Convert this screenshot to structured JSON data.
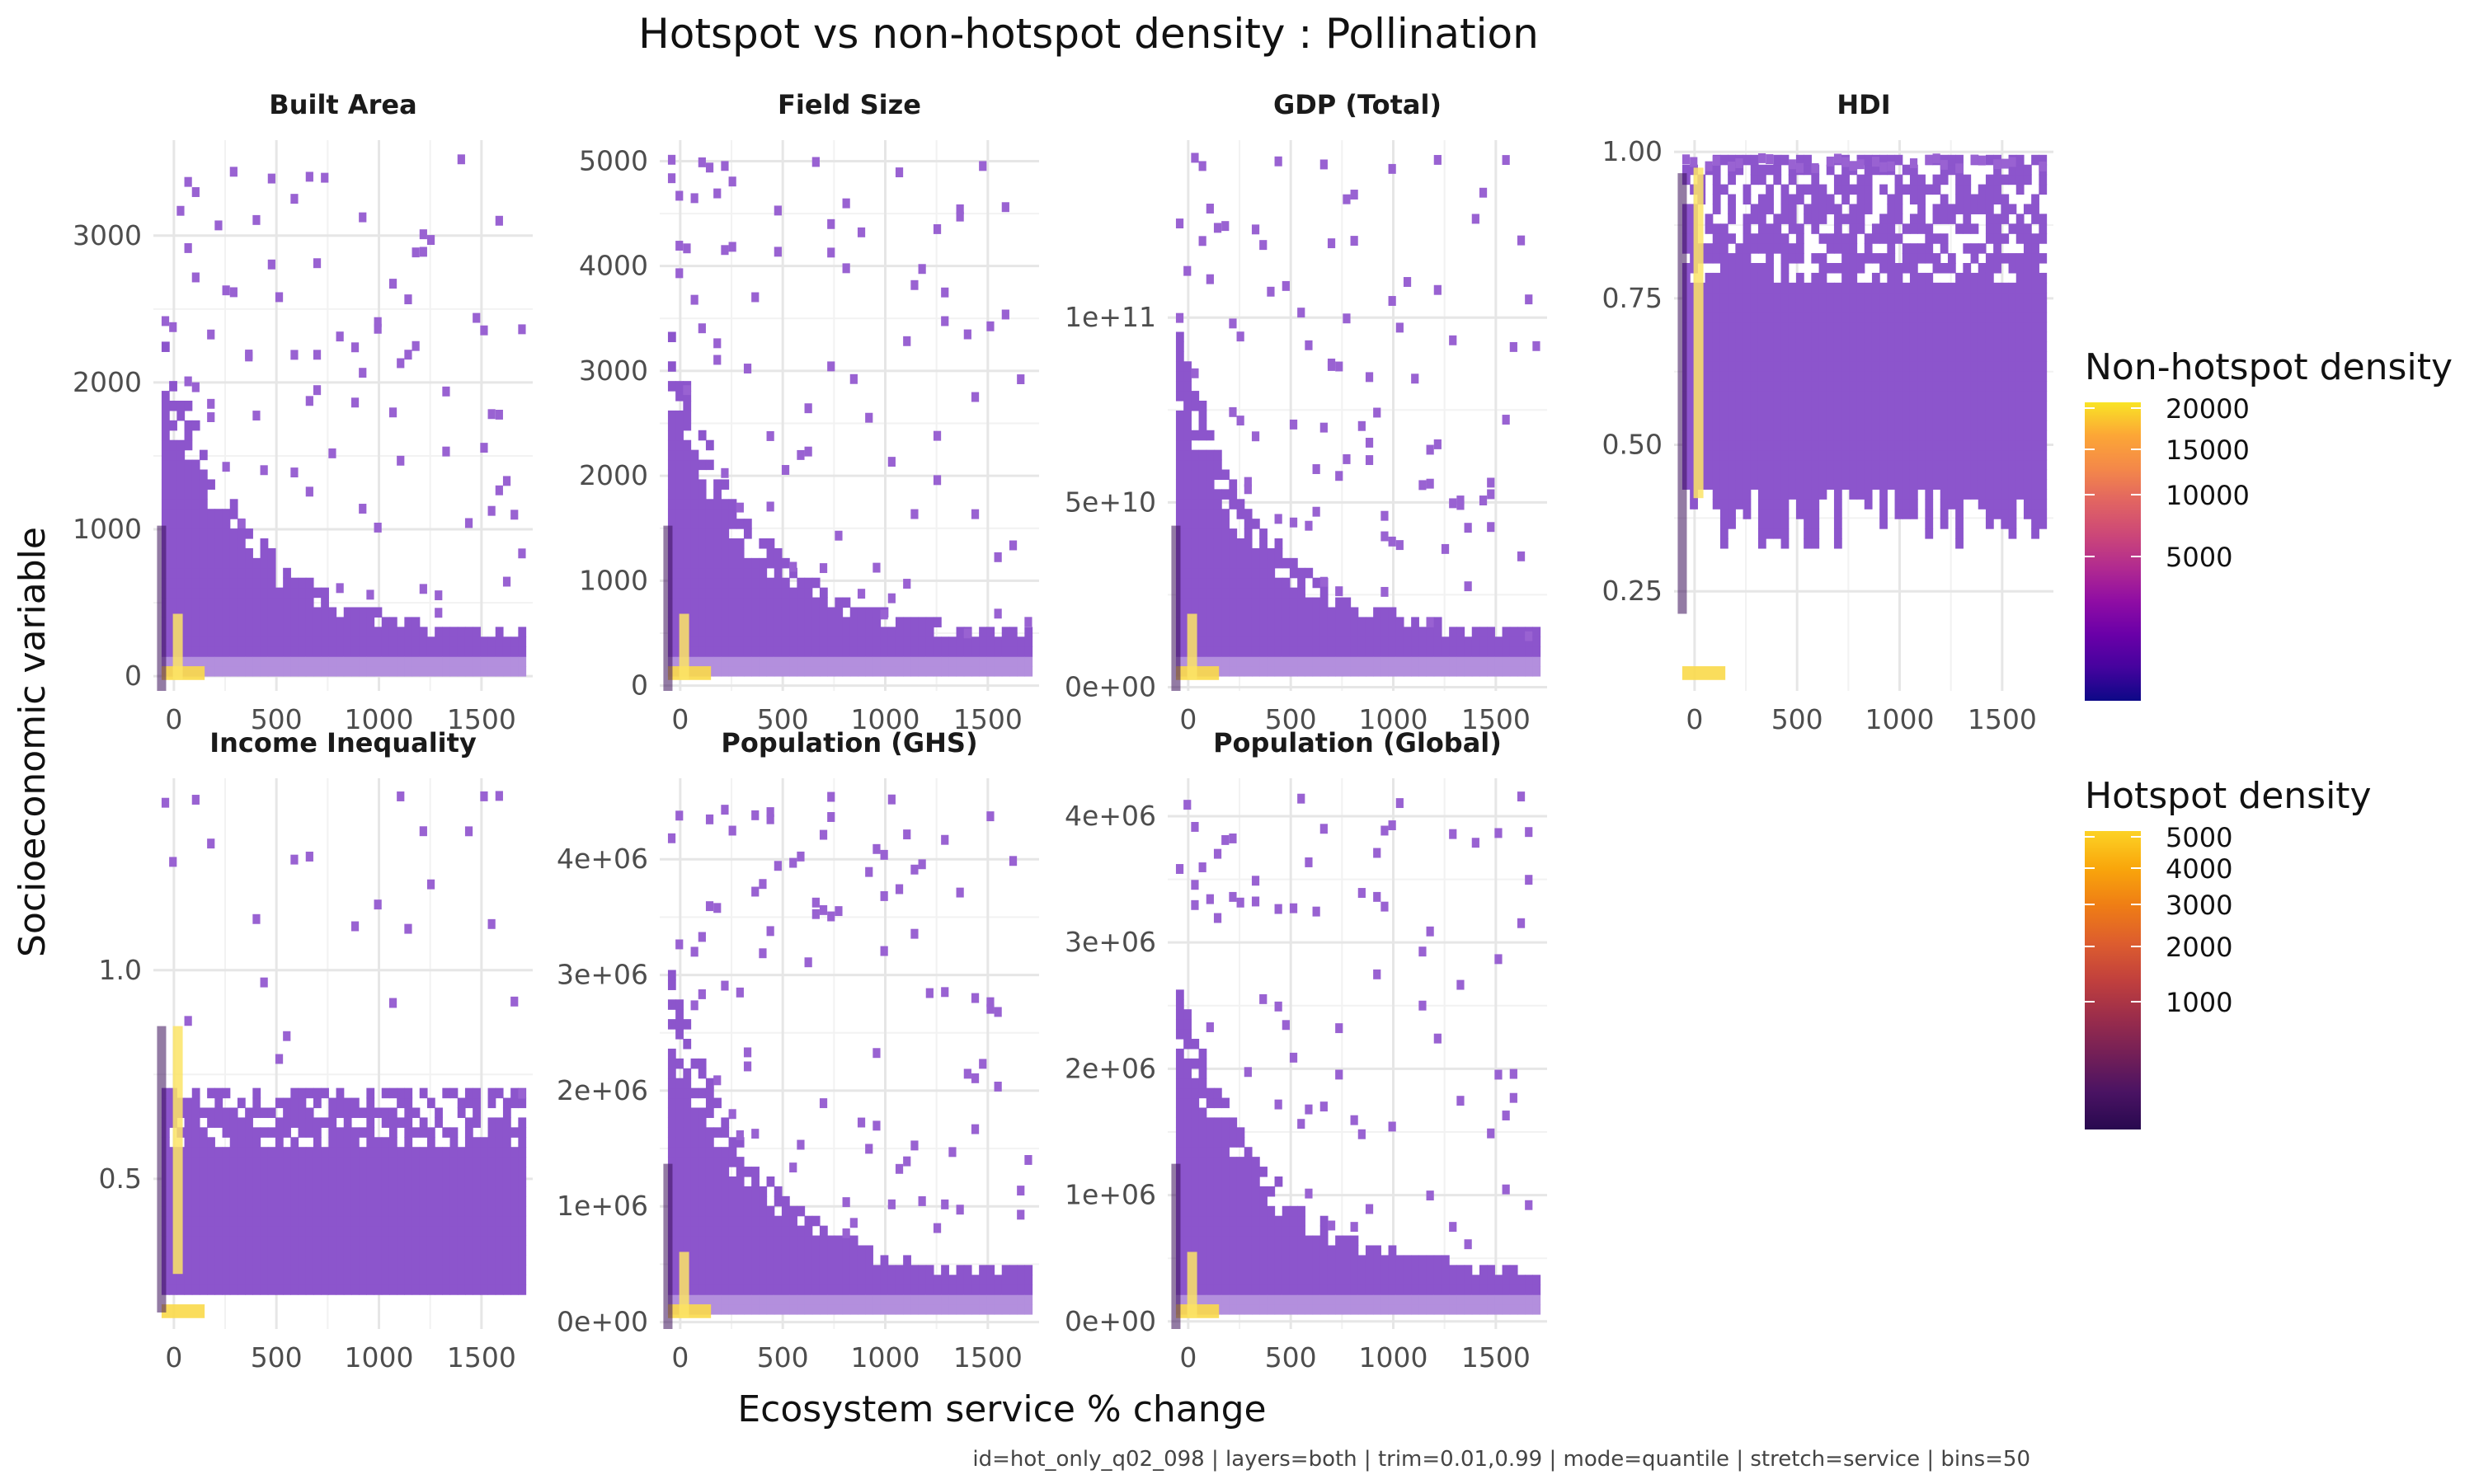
{
  "figure": {
    "title": "Hotspot vs non-hotspot density : Pollination",
    "xlabel": "Ecosystem service % change",
    "ylabel": "Socioeconomic variable",
    "caption": "id=hot_only_q02_098 | layers=both | trim=0.01,0.99 | mode=quantile | stretch=service | bins=50"
  },
  "legends": [
    {
      "title": "Non-hotspot density",
      "ticks": [
        "20000",
        "15000",
        "10000",
        "5000"
      ],
      "colors": [
        "#f9e425",
        "#fca636",
        "#f48849",
        "#e16462",
        "#cc4778",
        "#b12a90",
        "#8f0da4",
        "#6a00a8",
        "#45039e",
        "#0d0887"
      ]
    },
    {
      "title": "Hotspot density",
      "ticks": [
        "5000",
        "4000",
        "3000",
        "2000",
        "1000"
      ],
      "colors": [
        "#fcd225",
        "#f9a60b",
        "#ef7d15",
        "#dd5d2e",
        "#c1403d",
        "#9b2d4b",
        "#731f57",
        "#4a1363",
        "#28094f"
      ]
    }
  ],
  "chart_data": [
    {
      "type": "heatmap",
      "title": "Built Area",
      "xlim": [
        -100,
        1750
      ],
      "xticks": [
        0,
        500,
        1000,
        1500
      ],
      "xtick_labels": [
        "0",
        "500",
        "1000",
        "1500"
      ],
      "ylim": [
        -100,
        3650
      ],
      "yticks": [
        0,
        1000,
        2000,
        3000
      ],
      "ytick_labels": [
        "0",
        "1000",
        "2000",
        "3000"
      ]
    },
    {
      "type": "heatmap",
      "title": "Field Size",
      "xlim": [
        -100,
        1750
      ],
      "xticks": [
        0,
        500,
        1000,
        1500
      ],
      "xtick_labels": [
        "0",
        "500",
        "1000",
        "1500"
      ],
      "ylim": [
        -50,
        5200
      ],
      "yticks": [
        0,
        1000,
        2000,
        3000,
        4000,
        5000
      ],
      "ytick_labels": [
        "0",
        "1000",
        "2000",
        "3000",
        "4000",
        "5000"
      ]
    },
    {
      "type": "heatmap",
      "title": "GDP (Total)",
      "xlim": [
        -100,
        1750
      ],
      "xticks": [
        0,
        500,
        1000,
        1500
      ],
      "xtick_labels": [
        "0",
        "500",
        "1000",
        "1500"
      ],
      "ylim": [
        -1000000000.0,
        148000000000.0
      ],
      "yticks": [
        0,
        50000000000.0,
        100000000000.0
      ],
      "ytick_labels": [
        "0e+00",
        "5e+10",
        "1e+11"
      ]
    },
    {
      "type": "heatmap",
      "title": "HDI",
      "xlim": [
        -100,
        1750
      ],
      "xticks": [
        0,
        500,
        1000,
        1500
      ],
      "xtick_labels": [
        "0",
        "500",
        "1000",
        "1500"
      ],
      "ylim": [
        0.08,
        1.02
      ],
      "yticks": [
        0.25,
        0.5,
        0.75,
        1.0
      ],
      "ytick_labels": [
        "0.25",
        "0.50",
        "0.75",
        "1.00"
      ]
    },
    {
      "type": "heatmap",
      "title": "Income Inequality",
      "xlim": [
        -100,
        1750
      ],
      "xticks": [
        0,
        500,
        1000,
        1500
      ],
      "xtick_labels": [
        "0",
        "500",
        "1000",
        "1500"
      ],
      "ylim": [
        0.14,
        1.46
      ],
      "yticks": [
        0.5,
        1.0
      ],
      "ytick_labels": [
        "0.5",
        "1.0"
      ]
    },
    {
      "type": "heatmap",
      "title": "Population (GHS)",
      "xlim": [
        -100,
        1750
      ],
      "xticks": [
        0,
        500,
        1000,
        1500
      ],
      "xtick_labels": [
        "0",
        "500",
        "1000",
        "1500"
      ],
      "ylim": [
        -60000,
        4700000.0
      ],
      "yticks": [
        0,
        1000000.0,
        2000000.0,
        3000000.0,
        4000000.0
      ],
      "ytick_labels": [
        "0e+00",
        "1e+06",
        "2e+06",
        "3e+06",
        "4e+06"
      ]
    },
    {
      "type": "heatmap",
      "title": "Population (Global)",
      "xlim": [
        -100,
        1750
      ],
      "xticks": [
        0,
        500,
        1000,
        1500
      ],
      "xtick_labels": [
        "0",
        "500",
        "1000",
        "1500"
      ],
      "ylim": [
        -60000,
        4300000.0
      ],
      "yticks": [
        0,
        1000000.0,
        2000000.0,
        3000000.0,
        4000000.0
      ],
      "ytick_labels": [
        "0e+00",
        "1e+06",
        "2e+06",
        "3e+06",
        "4e+06"
      ]
    }
  ]
}
